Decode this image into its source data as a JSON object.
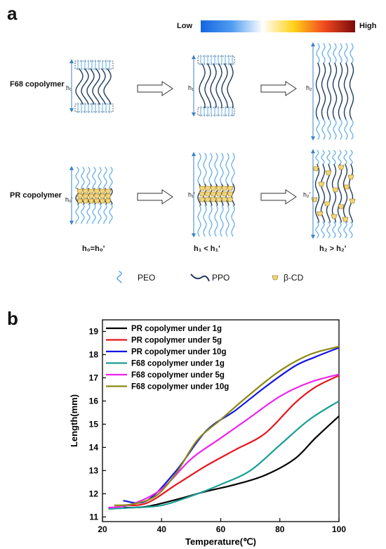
{
  "panel_a": {
    "label": "a",
    "colorbar": {
      "low": "Low",
      "high": "High",
      "colors": [
        "#1565e0",
        "#4f9cf0",
        "#ffffff",
        "#ffd21a",
        "#f24a1e",
        "#7a0a0a"
      ]
    },
    "rows": {
      "f68": "F68 copolymer",
      "pr": "PR copolymer"
    },
    "heights_f68": [
      "h₀",
      "h₁",
      "h₂"
    ],
    "heights_pr": [
      "h₀'",
      "h₁'",
      "h₂'"
    ],
    "relations": [
      "h₀=h₀'",
      "h₁ < h₁'",
      "h₂ > h₂'"
    ],
    "legend": {
      "peo": "PEO",
      "ppo": "PPO",
      "cd": "β-CD"
    },
    "colors": {
      "peo": "#5aa8e8",
      "ppo": "#1f3a5a",
      "cd": "#f3d67a",
      "arrow": "#3a82c8"
    }
  },
  "panel_b": {
    "label": "b"
  },
  "chart_data": {
    "type": "line",
    "xlabel": "Temperature(℃)",
    "ylabel": "Length(mm)",
    "xlim": [
      20,
      100
    ],
    "ylim": [
      10.8,
      19.5
    ],
    "xticks": [
      20,
      40,
      60,
      80,
      100
    ],
    "yticks": [
      11,
      12,
      13,
      14,
      15,
      16,
      17,
      18,
      19
    ],
    "legend_position": "top-left",
    "grid": false,
    "series": [
      {
        "name": "PR copolymer under 1g",
        "color": "#000000",
        "x": [
          27,
          35,
          45,
          55,
          65,
          75,
          85,
          92,
          100
        ],
        "y": [
          11.4,
          11.45,
          11.75,
          12.1,
          12.4,
          12.8,
          13.5,
          14.4,
          15.35
        ]
      },
      {
        "name": "PR copolymer under 5g",
        "color": "#e8141c",
        "x": [
          27,
          35,
          45,
          55,
          65,
          75,
          85,
          92,
          100
        ],
        "y": [
          11.5,
          11.6,
          12.4,
          13.2,
          13.9,
          14.6,
          15.9,
          16.6,
          17.1
        ]
      },
      {
        "name": "PR copolymer under 10g",
        "color": "#1414e6",
        "x": [
          27,
          35,
          45,
          55,
          65,
          75,
          85,
          92,
          100
        ],
        "y": [
          11.7,
          11.7,
          13.0,
          14.7,
          15.6,
          16.6,
          17.5,
          17.9,
          18.3
        ]
      },
      {
        "name": "F68 copolymer under 1g",
        "color": "#1b9e94",
        "x": [
          22,
          30,
          40,
          50,
          60,
          70,
          80,
          90,
          100
        ],
        "y": [
          11.35,
          11.4,
          11.5,
          11.9,
          12.4,
          13.0,
          14.1,
          15.2,
          16.0
        ]
      },
      {
        "name": "F68 copolymer under 5g",
        "color": "#ee22ee",
        "x": [
          22,
          30,
          40,
          50,
          60,
          70,
          80,
          90,
          100
        ],
        "y": [
          11.4,
          11.55,
          12.2,
          13.5,
          14.4,
          15.3,
          16.2,
          16.8,
          17.15
        ]
      },
      {
        "name": "F68 copolymer under 10g",
        "color": "#8a8a12",
        "x": [
          24,
          30,
          38,
          45,
          52,
          60,
          70,
          80,
          90,
          100
        ],
        "y": [
          11.5,
          11.55,
          11.9,
          12.9,
          14.3,
          15.2,
          16.3,
          17.3,
          18.0,
          18.35
        ]
      }
    ]
  }
}
